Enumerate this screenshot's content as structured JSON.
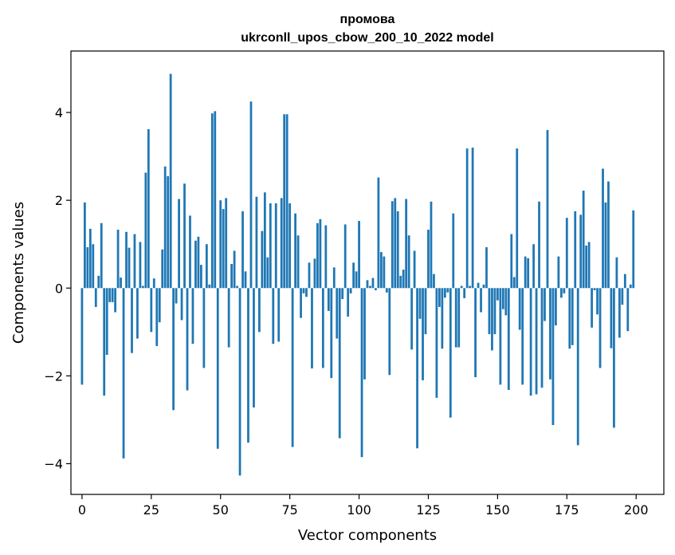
{
  "chart_data": {
    "type": "bar",
    "title_line1": "промова",
    "title_line2": "ukrconll_upos_cbow_200_10_2022 model",
    "xlabel": "Vector components",
    "ylabel": "Components values",
    "xlim": [
      -4,
      210
    ],
    "ylim": [
      -4.7,
      5.4
    ],
    "xticks": [
      0,
      25,
      50,
      75,
      100,
      125,
      150,
      175,
      200
    ],
    "yticks": [
      -4,
      -2,
      0,
      2,
      4
    ],
    "ytick_labels": [
      "−4",
      "−2",
      "0",
      "2",
      "4"
    ],
    "bar_color": "#1f77b4",
    "values": [
      -2.2,
      1.95,
      0.93,
      1.35,
      1.0,
      -0.43,
      0.28,
      1.48,
      -2.45,
      -1.52,
      -0.32,
      -0.32,
      -0.55,
      1.33,
      0.24,
      -3.88,
      1.28,
      0.92,
      -1.48,
      1.23,
      -1.15,
      1.05,
      0.05,
      2.63,
      3.62,
      -1.0,
      0.22,
      -1.32,
      -0.78,
      0.88,
      2.77,
      2.55,
      4.88,
      -2.78,
      -0.35,
      2.03,
      -0.73,
      2.38,
      -2.33,
      1.65,
      -1.27,
      1.08,
      1.17,
      0.53,
      -1.82,
      1.0,
      0.08,
      3.98,
      4.03,
      -3.66,
      2.0,
      1.8,
      2.05,
      -1.35,
      0.55,
      0.85,
      0.05,
      -4.27,
      1.75,
      0.38,
      -3.52,
      4.25,
      -2.72,
      2.08,
      -1.0,
      1.3,
      2.18,
      0.7,
      1.93,
      -1.27,
      1.93,
      -1.22,
      2.05,
      3.96,
      3.96,
      1.93,
      -3.62,
      1.7,
      1.2,
      -0.68,
      -0.12,
      -0.2,
      0.58,
      -1.83,
      0.67,
      1.48,
      1.57,
      -1.82,
      1.43,
      -0.52,
      -2.05,
      0.47,
      -1.15,
      -3.42,
      -0.25,
      1.45,
      -0.65,
      -0.12,
      0.58,
      0.38,
      1.53,
      -3.85,
      -2.08,
      0.18,
      0.05,
      0.23,
      -0.05,
      2.52,
      0.82,
      0.72,
      -0.1,
      -1.98,
      1.98,
      2.05,
      1.75,
      0.28,
      0.42,
      2.03,
      1.2,
      -1.4,
      0.85,
      -3.65,
      -0.7,
      -2.1,
      -1.05,
      1.33,
      1.97,
      0.32,
      -2.5,
      -0.43,
      -1.38,
      -0.22,
      -0.1,
      -2.95,
      1.7,
      -1.35,
      -1.35,
      0.05,
      -0.23,
      3.18,
      0.05,
      3.2,
      -2.03,
      0.12,
      -0.55,
      0.08,
      0.93,
      -1.05,
      -1.42,
      -1.05,
      -0.28,
      -2.2,
      -0.48,
      -0.62,
      -2.32,
      1.23,
      0.25,
      3.18,
      -0.95,
      -2.2,
      0.72,
      0.68,
      -2.45,
      1.0,
      -2.42,
      1.97,
      -2.27,
      -0.75,
      3.6,
      -2.08,
      -3.12,
      -0.85,
      0.72,
      -0.22,
      -0.12,
      1.6,
      -1.38,
      -1.3,
      1.75,
      -3.58,
      1.67,
      2.22,
      0.97,
      1.05,
      -0.9,
      -0.05,
      -0.6,
      -1.82,
      2.72,
      1.95,
      2.43,
      -1.37,
      -3.18,
      0.7,
      -1.13,
      -0.38,
      0.32,
      -0.98,
      0.08,
      1.77
    ]
  }
}
